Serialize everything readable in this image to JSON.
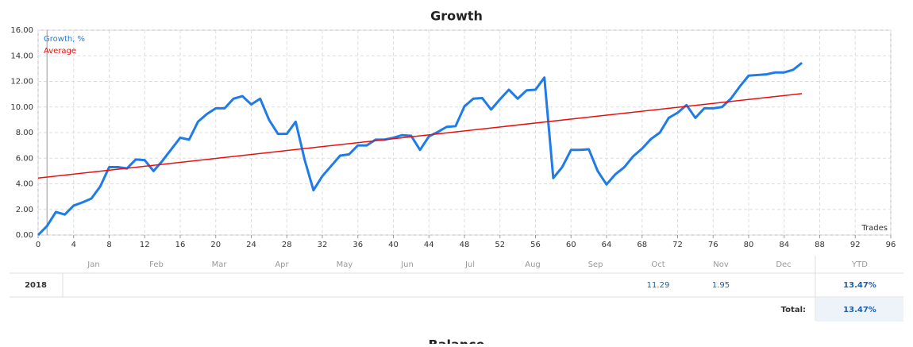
{
  "chart_data": {
    "type": "line",
    "title": "Growth",
    "x_label": "Trades",
    "series": [
      {
        "name": "Growth, %",
        "color": "#1e7be8",
        "x": [
          0,
          1,
          2,
          3,
          4,
          5,
          6,
          7,
          8,
          9,
          10,
          11,
          12,
          13,
          14,
          15,
          16,
          17,
          18,
          19,
          20,
          21,
          22,
          23,
          24,
          25,
          26,
          27,
          28,
          29,
          30,
          31,
          32,
          33,
          34,
          35,
          36,
          37,
          38,
          39,
          40,
          41,
          42,
          43,
          44,
          45,
          46,
          47,
          48,
          49,
          50,
          51,
          52,
          53,
          54,
          55,
          56,
          57,
          58,
          59,
          60,
          61,
          62,
          63,
          64,
          65,
          66,
          67,
          68,
          69,
          70,
          71,
          72,
          73,
          74,
          75,
          76,
          77,
          78,
          79,
          80,
          81,
          82,
          83,
          84,
          85,
          86
        ],
        "values": [
          0,
          0.7,
          1.8,
          1.6,
          2.3,
          2.55,
          2.85,
          3.8,
          5.3,
          5.3,
          5.2,
          5.9,
          5.85,
          5.0,
          5.8,
          6.7,
          7.6,
          7.45,
          8.85,
          9.45,
          9.9,
          9.9,
          10.65,
          10.85,
          10.2,
          10.65,
          9.0,
          7.9,
          7.9,
          8.85,
          5.9,
          3.5,
          4.6,
          5.4,
          6.2,
          6.3,
          7.0,
          7.0,
          7.45,
          7.45,
          7.6,
          7.8,
          7.75,
          6.65,
          7.7,
          8.05,
          8.45,
          8.5,
          10.05,
          10.65,
          10.7,
          9.8,
          10.6,
          11.35,
          10.65,
          11.3,
          11.35,
          12.3,
          4.45,
          5.3,
          6.65,
          6.65,
          6.7,
          5.0,
          3.95,
          4.75,
          5.3,
          6.15,
          6.75,
          7.5,
          8.0,
          9.15,
          9.55,
          10.15,
          9.15,
          9.9,
          9.9,
          10.0,
          10.65,
          11.6,
          12.45,
          12.5,
          12.55,
          12.7,
          12.7,
          12.9,
          13.45
        ]
      },
      {
        "name": "Average",
        "color": "#e8100f",
        "x": [
          0,
          86
        ],
        "values": [
          4.45,
          11.05
        ]
      }
    ],
    "xlim": [
      0,
      96
    ],
    "xticks": [
      0,
      4,
      8,
      12,
      16,
      20,
      24,
      28,
      32,
      36,
      40,
      44,
      48,
      52,
      56,
      60,
      64,
      68,
      72,
      76,
      80,
      84,
      88,
      92,
      96
    ],
    "ylim": [
      0,
      16
    ],
    "yticks": [
      {
        "value": 0,
        "label": "0.00"
      },
      {
        "value": 2,
        "label": "2.00"
      },
      {
        "value": 4,
        "label": "4.00"
      },
      {
        "value": 6,
        "label": "6.00"
      },
      {
        "value": 8,
        "label": "8.00"
      },
      {
        "value": 10,
        "label": "10.00"
      },
      {
        "value": 12,
        "label": "12.00"
      },
      {
        "value": 14,
        "label": "14.00"
      },
      {
        "value": 16,
        "label": "16.00"
      }
    ],
    "grid": true
  },
  "table": {
    "months": [
      "Jan",
      "Feb",
      "Mar",
      "Apr",
      "May",
      "Jun",
      "Jul",
      "Aug",
      "Sep",
      "Oct",
      "Nov",
      "Dec"
    ],
    "ytd_header": "YTD",
    "rows": [
      {
        "year": "2018",
        "cells": [
          null,
          null,
          null,
          null,
          null,
          null,
          null,
          null,
          null,
          "11.29",
          "1.95",
          null
        ],
        "ytd": "13.47%"
      }
    ],
    "total_label": "Total:",
    "total": "13.47%"
  },
  "next_title": "Balance"
}
